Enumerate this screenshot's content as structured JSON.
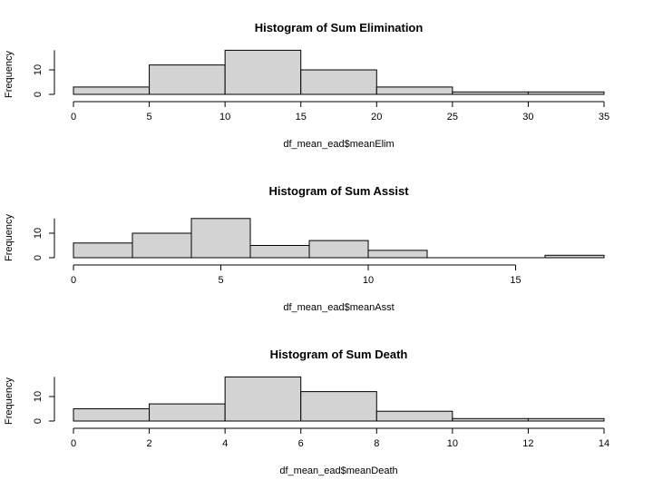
{
  "chart_data": [
    {
      "type": "bar",
      "title": "Histogram of Sum Elimination",
      "xlabel": "df_mean_ead$meanElim",
      "ylabel": "Frequency",
      "bins": [
        [
          0,
          5
        ],
        [
          5,
          10
        ],
        [
          10,
          15
        ],
        [
          15,
          20
        ],
        [
          20,
          25
        ],
        [
          25,
          30
        ],
        [
          30,
          35
        ]
      ],
      "values": [
        3,
        12,
        18,
        10,
        3,
        1,
        1
      ],
      "xticks": [
        0,
        5,
        10,
        15,
        20,
        25,
        30,
        35
      ],
      "yticks": [
        0,
        10
      ],
      "xlim": [
        0,
        35
      ],
      "ylim": [
        0,
        18
      ],
      "bar_color": "#d3d3d3"
    },
    {
      "type": "bar",
      "title": "Histogram of Sum Assist",
      "xlabel": "df_mean_ead$meanAsst",
      "ylabel": "Frequency",
      "bins": [
        [
          0,
          2
        ],
        [
          2,
          4
        ],
        [
          4,
          6
        ],
        [
          6,
          8
        ],
        [
          8,
          10
        ],
        [
          10,
          12
        ],
        [
          12,
          14
        ],
        [
          14,
          16
        ],
        [
          16,
          18
        ]
      ],
      "values": [
        6,
        10,
        16,
        5,
        7,
        3,
        0,
        0,
        1
      ],
      "xticks": [
        0,
        5,
        10,
        15
      ],
      "yticks": [
        0,
        10
      ],
      "xlim": [
        0,
        18
      ],
      "ylim": [
        0,
        16
      ],
      "bar_color": "#d3d3d3"
    },
    {
      "type": "bar",
      "title": "Histogram of Sum Death",
      "xlabel": "df_mean_ead$meanDeath",
      "ylabel": "Frequency",
      "bins": [
        [
          0,
          2
        ],
        [
          2,
          4
        ],
        [
          4,
          6
        ],
        [
          6,
          8
        ],
        [
          8,
          10
        ],
        [
          10,
          12
        ],
        [
          12,
          14
        ]
      ],
      "values": [
        5,
        7,
        18,
        12,
        4,
        1,
        1
      ],
      "xticks": [
        0,
        2,
        4,
        6,
        8,
        10,
        12,
        14
      ],
      "yticks": [
        0,
        10
      ],
      "xlim": [
        0,
        14
      ],
      "ylim": [
        0,
        18
      ],
      "bar_color": "#d3d3d3"
    }
  ]
}
